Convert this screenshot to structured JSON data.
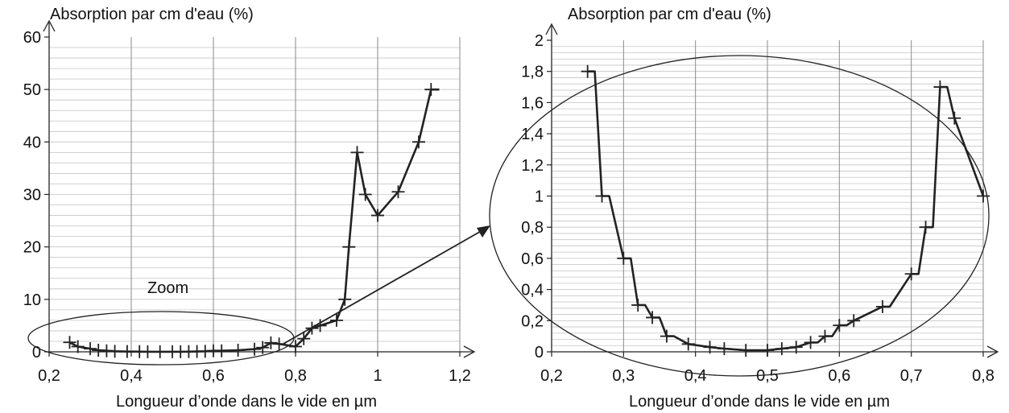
{
  "annotation": "Zoom",
  "chart_data": [
    {
      "type": "line",
      "title": "",
      "ylabel": "Absorption par cm d'eau (%)",
      "xlabel": "Longueur d’onde dans le vide en µm",
      "xlim": [
        0.2,
        1.2
      ],
      "ylim": [
        0,
        60
      ],
      "grid": true,
      "x_ticks": [
        0.2,
        0.4,
        0.6,
        0.8,
        1.0,
        1.2
      ],
      "x_tick_labels": [
        "0,2",
        "0,4",
        "0,6",
        "0,8",
        "1",
        "1,2"
      ],
      "y_ticks": [
        0,
        10,
        20,
        30,
        40,
        50,
        60
      ],
      "y_tick_labels": [
        "0",
        "10",
        "20",
        "30",
        "40",
        "50",
        "60"
      ],
      "series": [
        {
          "x": [
            0.25,
            0.27,
            0.3,
            0.32,
            0.34,
            0.36,
            0.39,
            0.42,
            0.44,
            0.47,
            0.5,
            0.52,
            0.54,
            0.56,
            0.58,
            0.6,
            0.62,
            0.66,
            0.7,
            0.72,
            0.74,
            0.76,
            0.8,
            0.82,
            0.84,
            0.86,
            0.9,
            0.92,
            0.93,
            0.95,
            0.97,
            1.0,
            1.05,
            1.1,
            1.13,
            1.15
          ],
          "y": [
            1.8,
            1.0,
            0.6,
            0.3,
            0.2,
            0.1,
            0.05,
            0.03,
            0.02,
            0.01,
            0.01,
            0.02,
            0.03,
            0.06,
            0.1,
            0.2,
            0.2,
            0.3,
            0.5,
            0.8,
            1.7,
            1.5,
            1.0,
            2.5,
            4.5,
            5.0,
            6.0,
            10.0,
            20.0,
            38.0,
            30.0,
            26.0,
            30.5,
            40.0,
            50.0,
            50.0
          ],
          "markers": [
            true,
            true,
            true,
            true,
            true,
            true,
            true,
            true,
            true,
            true,
            true,
            true,
            true,
            true,
            true,
            true,
            true,
            true,
            true,
            true,
            true,
            true,
            true,
            true,
            true,
            true,
            true,
            true,
            true,
            true,
            true,
            true,
            true,
            true,
            true,
            false
          ]
        }
      ]
    },
    {
      "type": "line",
      "title": "",
      "ylabel": "Absorption par cm d'eau (%)",
      "xlabel": "Longueur d’onde dans le vide en µm",
      "xlim": [
        0.2,
        0.8
      ],
      "ylim": [
        0,
        2
      ],
      "grid": true,
      "x_ticks": [
        0.2,
        0.3,
        0.4,
        0.5,
        0.6,
        0.7,
        0.8
      ],
      "x_tick_labels": [
        "0,2",
        "0,3",
        "0,4",
        "0,5",
        "0,6",
        "0,7",
        "0,8"
      ],
      "y_ticks": [
        0,
        0.2,
        0.4,
        0.6,
        0.8,
        1.0,
        1.2,
        1.4,
        1.6,
        1.8,
        2.0
      ],
      "y_tick_labels": [
        "0",
        "0,2",
        "0,4",
        "0,6",
        "0,8",
        "1",
        "1,2",
        "1,4",
        "1,6",
        "1,8",
        "2"
      ],
      "series": [
        {
          "x": [
            0.25,
            0.26,
            0.27,
            0.28,
            0.3,
            0.31,
            0.32,
            0.33,
            0.34,
            0.35,
            0.36,
            0.37,
            0.39,
            0.42,
            0.44,
            0.47,
            0.5,
            0.52,
            0.54,
            0.56,
            0.57,
            0.58,
            0.59,
            0.6,
            0.61,
            0.62,
            0.66,
            0.67,
            0.7,
            0.71,
            0.72,
            0.73,
            0.74,
            0.75,
            0.76,
            0.8
          ],
          "y": [
            1.8,
            1.8,
            1.0,
            1.0,
            0.6,
            0.6,
            0.3,
            0.3,
            0.22,
            0.22,
            0.1,
            0.1,
            0.05,
            0.03,
            0.02,
            0.01,
            0.01,
            0.02,
            0.03,
            0.06,
            0.06,
            0.1,
            0.1,
            0.17,
            0.17,
            0.2,
            0.29,
            0.29,
            0.5,
            0.5,
            0.8,
            0.8,
            1.7,
            1.7,
            1.5,
            1.0
          ],
          "markers": [
            true,
            false,
            true,
            false,
            true,
            false,
            true,
            false,
            true,
            false,
            true,
            false,
            true,
            true,
            true,
            true,
            true,
            true,
            true,
            true,
            false,
            true,
            false,
            true,
            false,
            true,
            true,
            false,
            true,
            false,
            true,
            false,
            true,
            false,
            true,
            true
          ]
        }
      ]
    }
  ]
}
